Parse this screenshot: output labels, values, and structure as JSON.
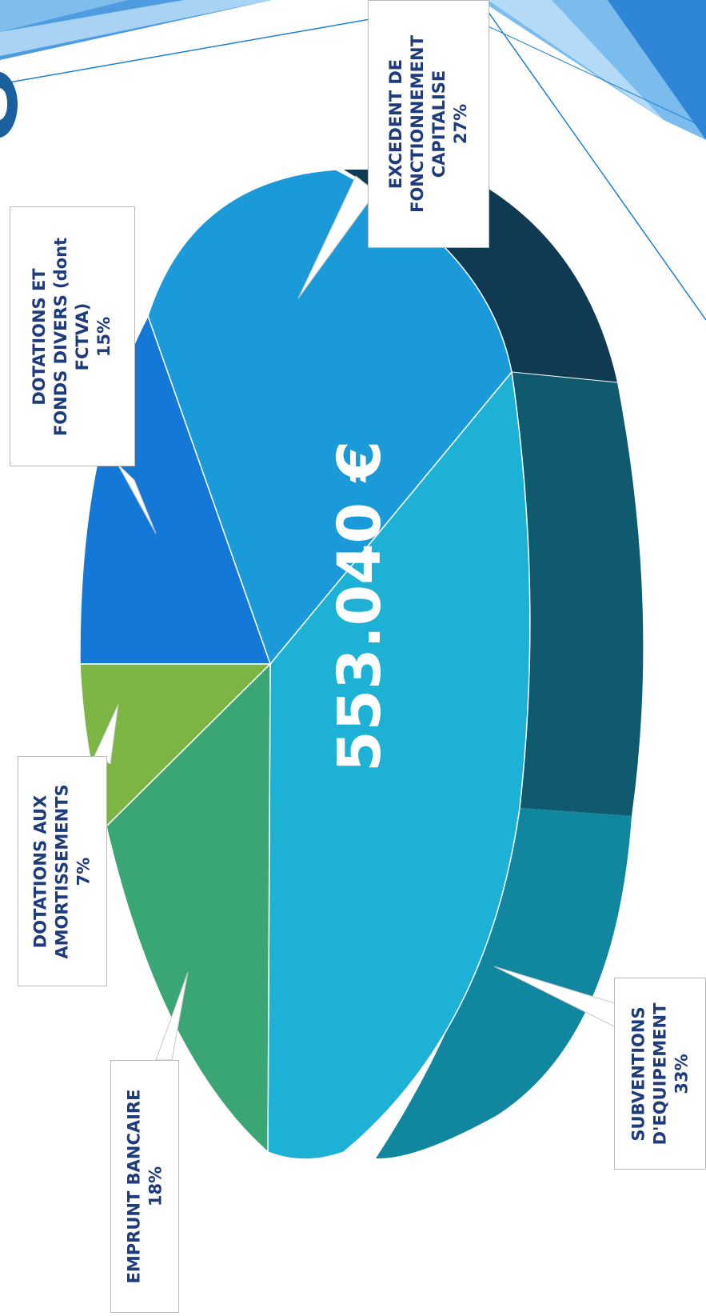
{
  "chart_data": {
    "type": "pie",
    "title": "",
    "center_text": "553.040 €",
    "slices": [
      {
        "label_lines": [
          "EXCEDENT DE",
          "FONCTIONNEMENT",
          "CAPITALISE"
        ],
        "percent_text": "27%",
        "value": 27,
        "color": "#1a9ad9"
      },
      {
        "label_lines": [
          "SUBVENTIONS",
          "D'EQUIPEMENT"
        ],
        "percent_text": "33%",
        "value": 33,
        "color": "#1eb1d6"
      },
      {
        "label_lines": [
          "EMPRUNT BANCAIRE"
        ],
        "percent_text": "18%",
        "value": 18,
        "color": "#3aa674"
      },
      {
        "label_lines": [
          "DOTATIONS AUX",
          "AMORTISSEMENTS"
        ],
        "percent_text": "7%",
        "value": 7,
        "color": "#7cb543"
      },
      {
        "label_lines": [
          "DOTATIONS ET",
          "FONDS DIVERS (dont",
          "FCTVA)"
        ],
        "percent_text": "15%",
        "value": 15,
        "color": "#1479d6"
      }
    ]
  },
  "colors": {
    "label_text": "#1e3b7c",
    "side_dark": "#0f3a52",
    "side_teal": "#0f5a6e",
    "side_light": "#10869f",
    "decor_blue": "#2f86d6",
    "decor_light": "#8ec8f2"
  }
}
